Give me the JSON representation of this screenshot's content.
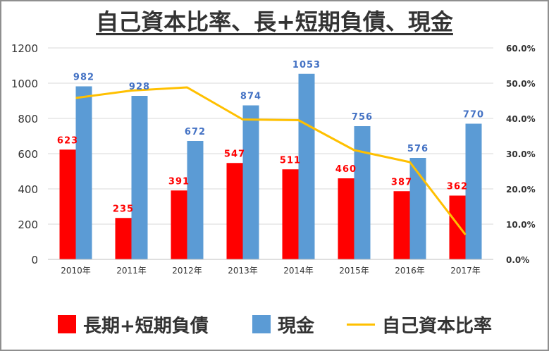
{
  "chart_data": {
    "type": "bar",
    "title": "自己資本比率、長+短期負債、現金",
    "categories": [
      "2010年",
      "2011年",
      "2012年",
      "2013年",
      "2014年",
      "2015年",
      "2016年",
      "2017年"
    ],
    "series": [
      {
        "name": "長期+短期負債",
        "type": "bar",
        "axis": "left",
        "color": "#ff0000",
        "label_color": "#ff0000",
        "values": [
          623,
          235,
          391,
          547,
          511,
          460,
          387,
          362
        ]
      },
      {
        "name": "現金",
        "type": "bar",
        "axis": "left",
        "color": "#5b9bd5",
        "label_color": "#4472c4",
        "values": [
          982,
          928,
          672,
          874,
          1053,
          756,
          576,
          770
        ]
      },
      {
        "name": "自己資本比率",
        "type": "line",
        "axis": "right",
        "color": "#ffc000",
        "values": [
          45.8,
          47.9,
          48.8,
          39.7,
          39.5,
          31.0,
          27.6,
          7.0
        ]
      }
    ],
    "ylim": [
      0,
      1200
    ],
    "yticks": [
      "0",
      "200",
      "400",
      "600",
      "800",
      "1000",
      "1200"
    ],
    "y2lim": [
      0,
      60
    ],
    "y2ticks": [
      "0.0%",
      "10.0%",
      "20.0%",
      "30.0%",
      "40.0%",
      "50.0%",
      "60.0%"
    ],
    "grid": true,
    "legend_position": "bottom"
  }
}
